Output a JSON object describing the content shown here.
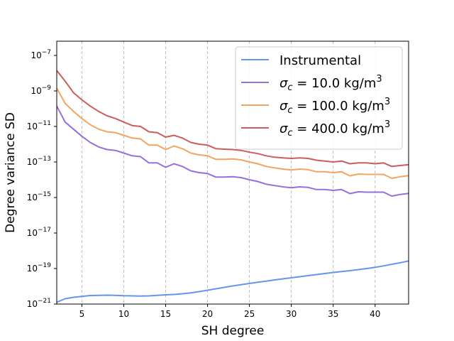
{
  "chart_data": {
    "type": "line",
    "xlabel": "SH degree",
    "ylabel": "Degree variance SD",
    "xlim": [
      2,
      44
    ],
    "ylim_log10": [
      -21,
      -6.2
    ],
    "yscale": "log",
    "x_ticks": [
      5,
      10,
      15,
      20,
      25,
      30,
      35,
      40
    ],
    "y_ticks_exponent": [
      -21,
      -19,
      -17,
      -15,
      -13,
      -11,
      -9,
      -7
    ],
    "y_tick_base": "10",
    "grid": "vertical dashed at x ticks",
    "legend_position": "top-right",
    "x": [
      2,
      3,
      4,
      5,
      6,
      7,
      8,
      9,
      10,
      11,
      12,
      13,
      14,
      15,
      16,
      17,
      18,
      19,
      20,
      21,
      22,
      23,
      24,
      25,
      26,
      27,
      28,
      29,
      30,
      31,
      32,
      33,
      34,
      35,
      36,
      37,
      38,
      39,
      40,
      41,
      42,
      43,
      44
    ],
    "series": [
      {
        "name": "Instrumental",
        "color": "#6495ed",
        "log10_values": [
          -20.9,
          -20.7,
          -20.62,
          -20.57,
          -20.52,
          -20.51,
          -20.5,
          -20.51,
          -20.53,
          -20.54,
          -20.55,
          -20.54,
          -20.51,
          -20.48,
          -20.46,
          -20.42,
          -20.37,
          -20.3,
          -20.22,
          -20.14,
          -20.06,
          -19.98,
          -19.91,
          -19.84,
          -19.77,
          -19.71,
          -19.64,
          -19.58,
          -19.52,
          -19.46,
          -19.4,
          -19.34,
          -19.28,
          -19.22,
          -19.17,
          -19.12,
          -19.06,
          -19.0,
          -18.93,
          -18.85,
          -18.76,
          -18.67,
          -18.57
        ]
      },
      {
        "name_prefix": "σ",
        "name_sub": "c",
        "name_mid": " = 10.0 kg/m",
        "name_sup": "3",
        "color": "#9370db",
        "log10_values": [
          -9.85,
          -10.75,
          -11.15,
          -11.55,
          -11.9,
          -12.15,
          -12.3,
          -12.35,
          -12.5,
          -12.65,
          -12.7,
          -13.05,
          -13.05,
          -13.3,
          -13.1,
          -13.25,
          -13.5,
          -13.6,
          -13.65,
          -13.85,
          -13.85,
          -13.83,
          -13.88,
          -14.0,
          -14.1,
          -14.25,
          -14.33,
          -14.4,
          -14.45,
          -14.4,
          -14.43,
          -14.55,
          -14.55,
          -14.6,
          -14.55,
          -14.78,
          -14.68,
          -14.7,
          -14.7,
          -14.7,
          -14.92,
          -14.83,
          -14.77
        ]
      },
      {
        "name_prefix": "σ",
        "name_sub": "c",
        "name_mid": " = 100.0 kg/m",
        "name_sup": "3",
        "color": "#f4a460",
        "log10_values": [
          -8.85,
          -9.7,
          -10.15,
          -10.55,
          -10.9,
          -11.15,
          -11.3,
          -11.35,
          -11.5,
          -11.65,
          -11.7,
          -12.05,
          -12.05,
          -12.3,
          -12.1,
          -12.25,
          -12.5,
          -12.6,
          -12.65,
          -12.85,
          -12.85,
          -12.83,
          -12.88,
          -13.0,
          -13.1,
          -13.25,
          -13.33,
          -13.4,
          -13.45,
          -13.4,
          -13.43,
          -13.55,
          -13.55,
          -13.6,
          -13.55,
          -13.78,
          -13.68,
          -13.7,
          -13.7,
          -13.7,
          -13.92,
          -13.83,
          -13.77
        ]
      },
      {
        "name_prefix": "σ",
        "name_sub": "c",
        "name_mid": " = 400.0 kg/m",
        "name_sup": "3",
        "color": "#cd5c5c",
        "log10_values": [
          -7.85,
          -8.45,
          -9.1,
          -9.5,
          -9.85,
          -10.15,
          -10.4,
          -10.55,
          -10.75,
          -10.95,
          -11.0,
          -11.3,
          -11.35,
          -11.6,
          -11.5,
          -11.65,
          -11.9,
          -12.0,
          -12.05,
          -12.25,
          -12.28,
          -12.3,
          -12.35,
          -12.45,
          -12.53,
          -12.65,
          -12.73,
          -12.77,
          -12.8,
          -12.77,
          -12.8,
          -12.9,
          -12.95,
          -13.0,
          -12.95,
          -13.1,
          -13.05,
          -13.05,
          -13.1,
          -13.05,
          -13.25,
          -13.2,
          -13.15
        ]
      }
    ]
  }
}
